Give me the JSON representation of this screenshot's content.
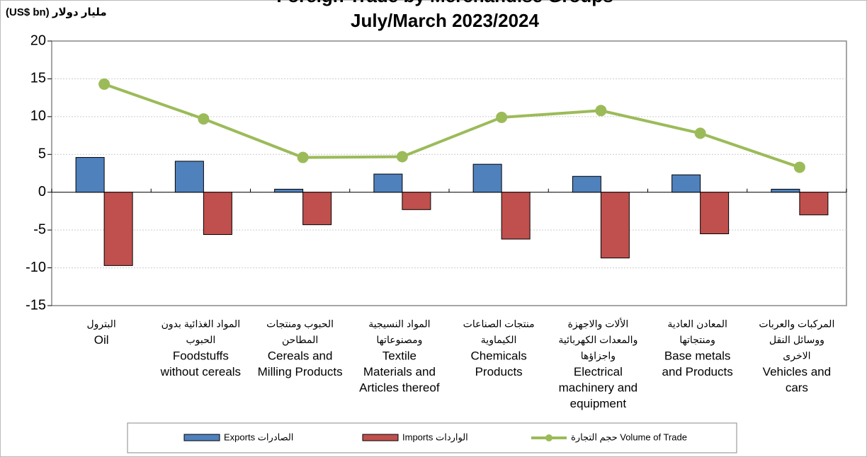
{
  "chart_data": {
    "type": "bar-line",
    "title": [
      "Foreign Trade by Merchandise Groups",
      "July/March 2023/2024"
    ],
    "y_label": "(US$ bn) مليار دولار",
    "categories": [
      [
        "البترول",
        "Oil"
      ],
      [
        "المواد الغذائية بدون",
        "الحبوب",
        "Foodstuffs",
        "without cereals"
      ],
      [
        "الحبوب ومنتجات",
        "المطاحن",
        "Cereals and",
        "Milling Products"
      ],
      [
        "المواد النسيجية",
        "ومصنوعاتها",
        "Textile",
        "Materials and",
        "Articles thereof"
      ],
      [
        "منتجات الصناعات",
        "الكيماوية",
        "Chemicals",
        "Products"
      ],
      [
        "الألات والاجهزة",
        "والمعدات الكهربائية",
        "واجزاؤها",
        "Electrical",
        "machinery and",
        "equipment"
      ],
      [
        "المعادن العادية",
        "ومنتجاتها",
        "Base metals",
        "and Products"
      ],
      [
        "المركبات والعربات",
        "ووسائل النقل",
        "الاخرى",
        "Vehicles and",
        "cars"
      ]
    ],
    "series": [
      {
        "name": "Exports  الصادرات",
        "color": "#4f81bd",
        "kind": "bar",
        "values": [
          4.6,
          4.1,
          0.4,
          2.4,
          3.7,
          2.1,
          2.3,
          0.4
        ]
      },
      {
        "name": "Imports  الواردات",
        "color": "#c0504d",
        "kind": "bar",
        "values": [
          -9.7,
          -5.6,
          -4.3,
          -2.3,
          -6.2,
          -8.7,
          -5.5,
          -3.0
        ]
      },
      {
        "name": "حجم التجارة Volume of Trade",
        "color": "#9bbb59",
        "kind": "line",
        "values": [
          14.3,
          9.7,
          4.6,
          4.7,
          9.9,
          10.8,
          7.8,
          3.3
        ]
      }
    ],
    "ylim": [
      -15,
      20
    ],
    "yticks": [
      -15,
      -10,
      -5,
      0,
      5,
      10,
      15,
      20
    ],
    "grid": true,
    "legend": "bottom"
  }
}
